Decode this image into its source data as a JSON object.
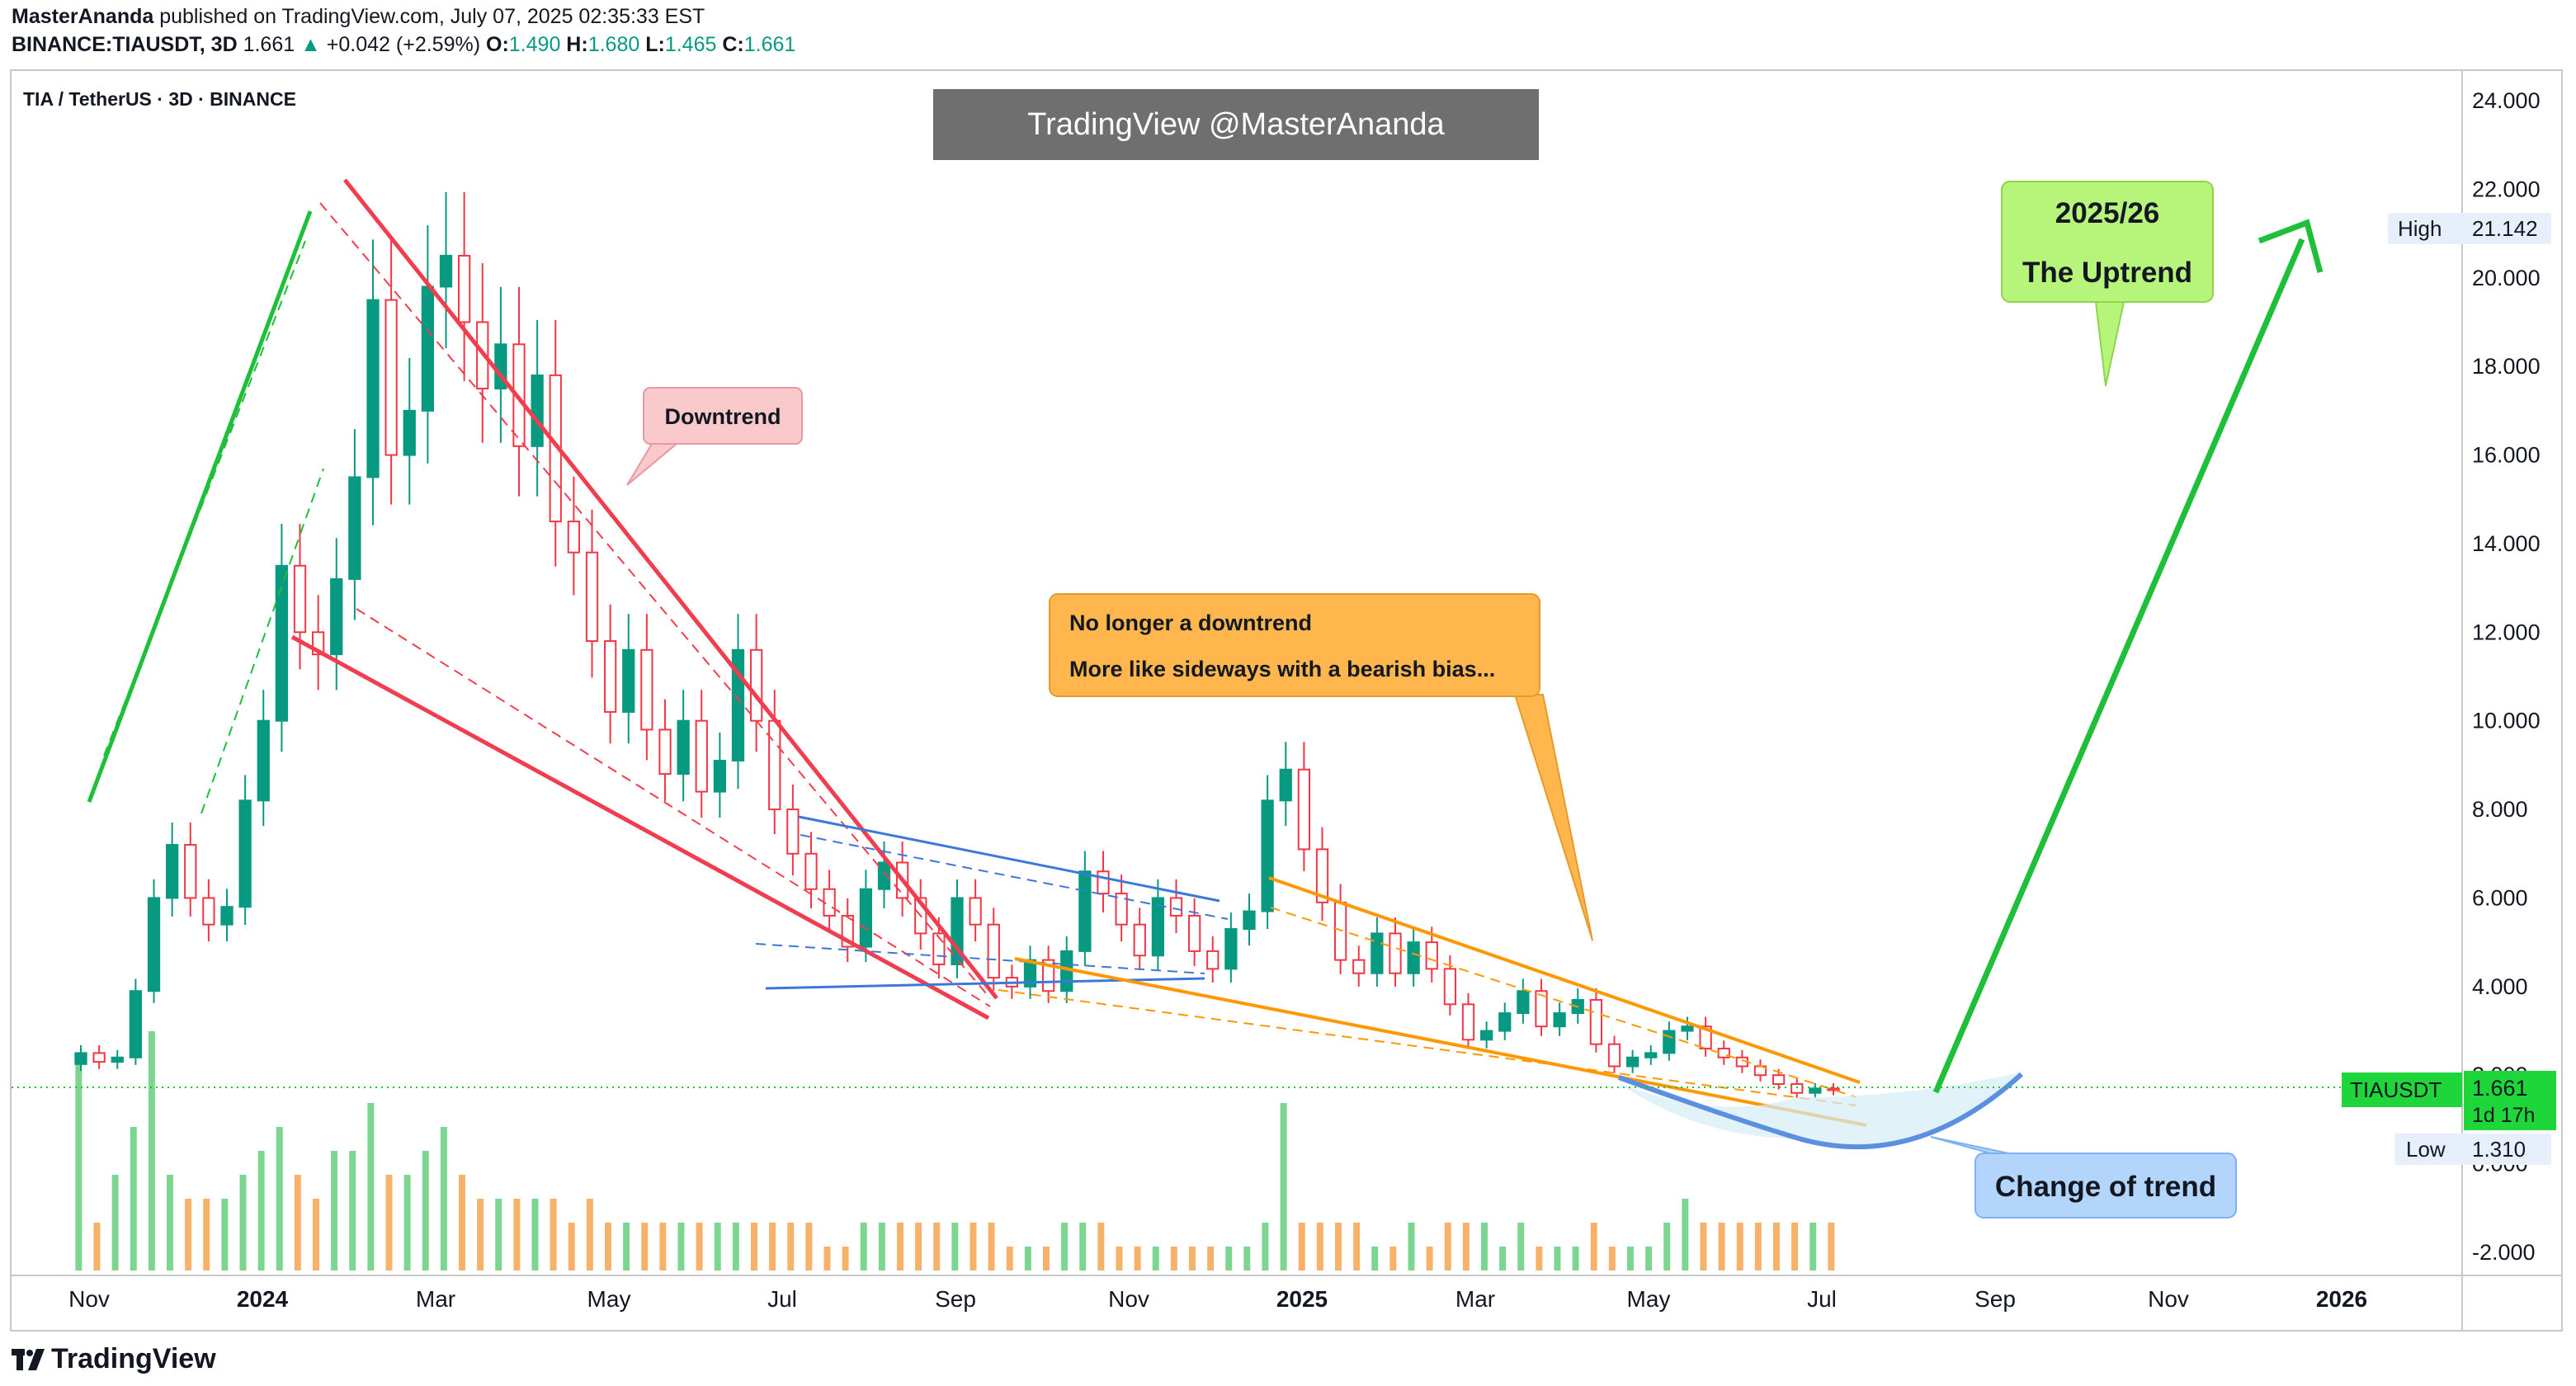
{
  "header": {
    "author": "MasterAnanda",
    "published_text": "published on TradingView.com, July 07, 2025 02:35:33 EST",
    "symbol_line": "BINANCE:TIAUSDT, 3D",
    "last": "1.661",
    "change": "+0.042 (+2.59%)",
    "o_label": "O:",
    "o_value": "1.490",
    "h_label": "H:",
    "h_value": "1.680",
    "l_label": "L:",
    "l_value": "1.465",
    "c_label": "C:",
    "c_value": "1.661"
  },
  "chart_title": "TIA / TetherUS · 3D · BINANCE",
  "watermark": "TradingView @MasterAnanda",
  "brand": "TradingView",
  "colors": {
    "up": "#089981",
    "down": "#f23645",
    "green_line": "#1fbf3a",
    "red_line": "#f03e4e",
    "blue_line": "#3c78d8",
    "orange_line": "#ff9800",
    "bubble_red": "#f9c9cc",
    "bubble_orange": "#ffb74d",
    "bubble_green": "#b6f47a",
    "bubble_blue": "#b3d4fb"
  },
  "chart_data": {
    "type": "candlestick",
    "title": "TIA / TetherUS · 3D · BINANCE",
    "x_tick_labels": [
      "Nov",
      "2024",
      "Mar",
      "May",
      "Jul",
      "Sep",
      "Nov",
      "2025",
      "Mar",
      "May",
      "Jul",
      "Sep",
      "Nov",
      "2026"
    ],
    "y_tick_labels": [
      "24.000",
      "22.000",
      "20.000",
      "18.000",
      "16.000",
      "14.000",
      "12.000",
      "10.000",
      "8.000",
      "6.000",
      "4.000",
      "2.000",
      "0.000",
      "-2.000"
    ],
    "ylim": [
      -2.6,
      24.5
    ],
    "price_label": {
      "symbol": "TIAUSDT",
      "value": "1.661",
      "countdown": "1d 17h"
    },
    "high_label": {
      "label": "High",
      "value": "21.142"
    },
    "low_label": {
      "label": "Low",
      "value": "1.310"
    },
    "last_price": 1.661,
    "high": 21.142,
    "low": 1.31,
    "annotations": [
      {
        "text": "Downtrend",
        "color": "red"
      },
      {
        "text": "No longer a downtrend",
        "color": "orange"
      },
      {
        "text": "More like sideways with a bearish bias...",
        "color": "orange"
      },
      {
        "text": "2025/26",
        "color": "green"
      },
      {
        "text": "The Uptrend",
        "color": "green"
      },
      {
        "text": "Change of trend",
        "color": "blue"
      }
    ],
    "candles_approx_close": [
      2.5,
      2.3,
      2.4,
      3.9,
      6.0,
      7.2,
      6.0,
      5.4,
      5.8,
      8.2,
      10.0,
      13.5,
      12.0,
      11.5,
      13.2,
      15.5,
      19.5,
      16.0,
      17.0,
      19.8,
      20.5,
      19.0,
      17.5,
      18.5,
      16.2,
      17.8,
      14.5,
      13.8,
      11.8,
      10.2,
      11.6,
      9.8,
      8.8,
      10.0,
      8.4,
      9.1,
      11.6,
      10.0,
      8.0,
      7.0,
      6.2,
      5.6,
      4.9,
      6.2,
      6.8,
      6.0,
      5.2,
      4.5,
      6.0,
      5.4,
      4.2,
      4.0,
      4.6,
      3.9,
      4.8,
      6.6,
      6.1,
      5.4,
      4.7,
      6.0,
      5.6,
      4.8,
      4.4,
      5.3,
      5.7,
      8.2,
      8.9,
      7.1,
      5.9,
      4.6,
      4.3,
      5.2,
      4.3,
      5.0,
      4.4,
      3.6,
      2.8,
      3.0,
      3.4,
      3.9,
      3.1,
      3.4,
      3.7,
      2.7,
      2.2,
      2.4,
      2.5,
      3.0,
      3.1,
      2.6,
      2.4,
      2.2,
      2.0,
      1.8,
      1.6,
      1.7,
      1.661
    ],
    "volume_relative": [
      0.9,
      0.2,
      0.4,
      0.6,
      1.0,
      0.4,
      0.3,
      0.3,
      0.3,
      0.4,
      0.5,
      0.6,
      0.4,
      0.3,
      0.5,
      0.5,
      0.7,
      0.4,
      0.4,
      0.5,
      0.6,
      0.4,
      0.3,
      0.3,
      0.3,
      0.3,
      0.3,
      0.2,
      0.3,
      0.2,
      0.2,
      0.2,
      0.2,
      0.2,
      0.2,
      0.2,
      0.2,
      0.2,
      0.2,
      0.2,
      0.2,
      0.1,
      0.1,
      0.2,
      0.2,
      0.2,
      0.2,
      0.2,
      0.2,
      0.2,
      0.2,
      0.1,
      0.1,
      0.1,
      0.2,
      0.2,
      0.2,
      0.1,
      0.1,
      0.1,
      0.1,
      0.1,
      0.1,
      0.1,
      0.1,
      0.2,
      0.7,
      0.2,
      0.2,
      0.2,
      0.2,
      0.1,
      0.1,
      0.2,
      0.1,
      0.2,
      0.2,
      0.2,
      0.1,
      0.2,
      0.1,
      0.1,
      0.1,
      0.2,
      0.1,
      0.1,
      0.1,
      0.2,
      0.3,
      0.2,
      0.2,
      0.2,
      0.2,
      0.2,
      0.2,
      0.2,
      0.2
    ]
  }
}
